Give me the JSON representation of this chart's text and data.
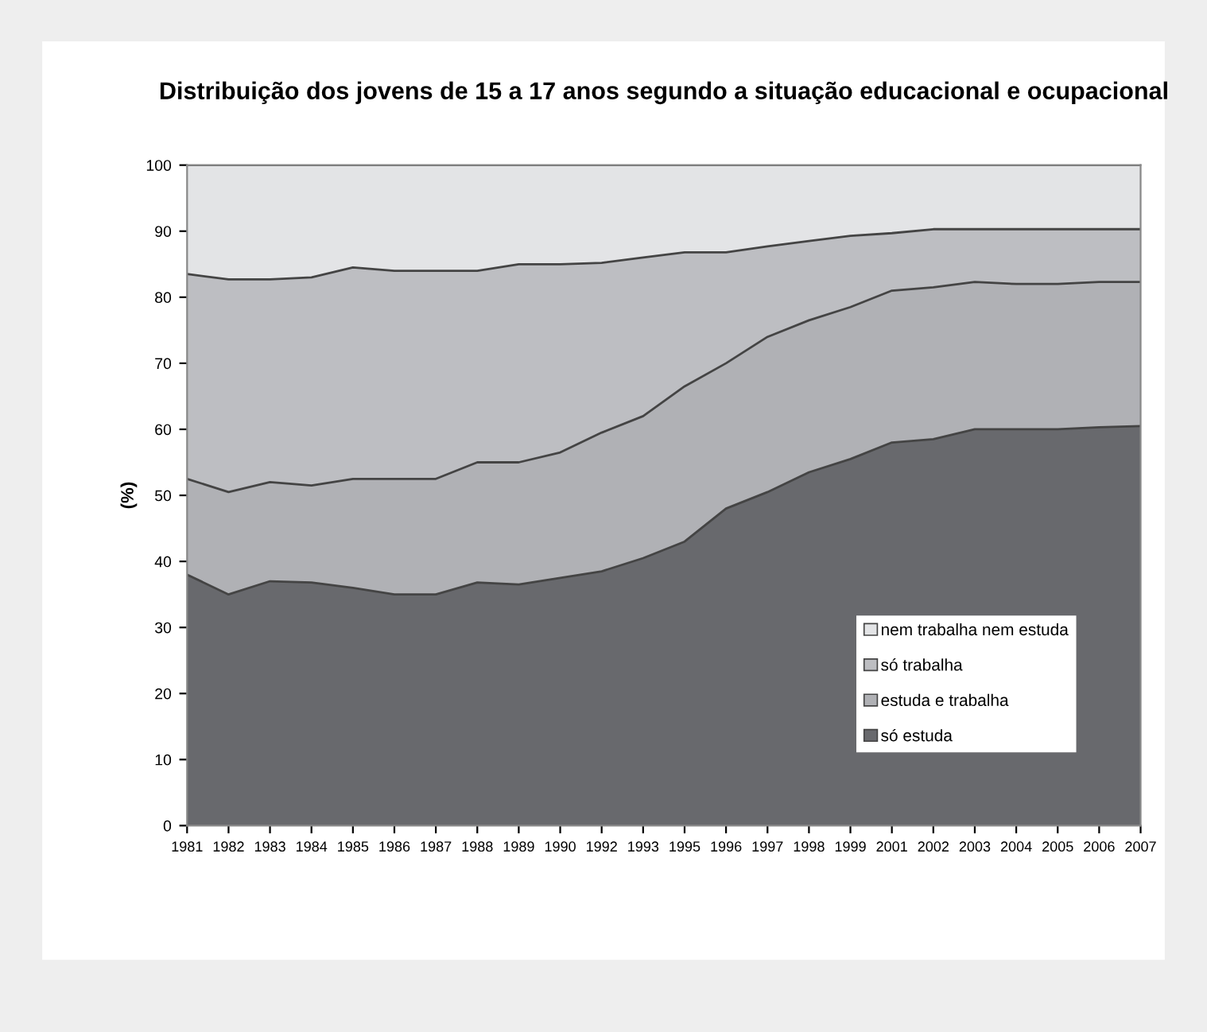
{
  "chart_data": {
    "type": "area",
    "stacked": true,
    "title": "Distribuição dos jovens de 15 a 17 anos segundo a situação educacional e ocupacional",
    "ylabel": "(%)",
    "categories": [
      "1981",
      "1982",
      "1983",
      "1984",
      "1985",
      "1986",
      "1987",
      "1988",
      "1989",
      "1990",
      "1992",
      "1993",
      "1995",
      "1996",
      "1997",
      "1998",
      "1999",
      "2001",
      "2002",
      "2003",
      "2004",
      "2005",
      "2006",
      "2007"
    ],
    "series": [
      {
        "name": "só estuda",
        "color": "#68696d",
        "values": [
          38,
          35,
          37,
          36.8,
          36,
          35,
          35,
          36.8,
          36.5,
          37.5,
          38.5,
          40.5,
          43,
          48,
          50.5,
          53.5,
          55.5,
          58,
          58.5,
          60,
          60,
          60,
          60.3,
          60.5
        ]
      },
      {
        "name": "estuda e trabalha",
        "color": "#b0b1b5",
        "values": [
          14.5,
          15.5,
          15,
          14.7,
          16.5,
          17.5,
          17.5,
          18.2,
          18.5,
          19,
          21,
          21.5,
          23.5,
          22,
          23.5,
          23,
          23,
          23,
          23,
          22.3,
          22,
          22,
          22,
          21.8
        ]
      },
      {
        "name": "só trabalha",
        "color": "#bdbec2",
        "values": [
          31,
          32.2,
          30.7,
          31.5,
          32,
          31.5,
          31.5,
          29,
          30,
          28.5,
          25.7,
          24,
          20.3,
          16.8,
          13.7,
          12,
          10.8,
          8.7,
          8.8,
          8,
          8.3,
          8.3,
          8,
          8
        ]
      },
      {
        "name": "nem trabalha nem estuda",
        "color": "#e3e4e6",
        "values": [
          16.5,
          17.3,
          17.3,
          17,
          15.5,
          16,
          16,
          16,
          15,
          15,
          14.8,
          14,
          13.2,
          13.2,
          12.3,
          11.5,
          10.7,
          10.3,
          9.7,
          9.7,
          9.7,
          9.7,
          9.7,
          9.7
        ]
      }
    ],
    "ylim": [
      0,
      100
    ],
    "yticks": [
      0,
      10,
      20,
      30,
      40,
      50,
      60,
      70,
      80,
      90,
      100
    ],
    "grid": false,
    "legend": "bottom right"
  }
}
